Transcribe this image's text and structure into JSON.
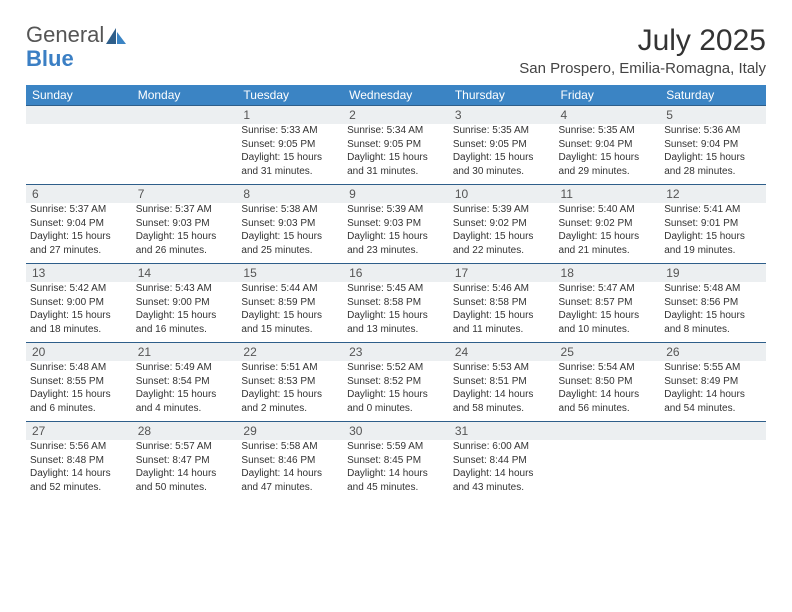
{
  "logo": {
    "part1": "General",
    "part2": "Blue"
  },
  "title": "July 2025",
  "location": "San Prospero, Emilia-Romagna, Italy",
  "colors": {
    "header_bg": "#3b84c4",
    "header_text": "#ffffff",
    "daynum_bg": "#eceff1",
    "daynum_border": "#2e5e8a",
    "text": "#333333",
    "logo_gray": "#555555",
    "logo_blue": "#3b7fc4"
  },
  "fonts": {
    "body_pt": 10,
    "dow_pt": 12,
    "daynum_pt": 12,
    "title_pt": 30,
    "location_pt": 15
  },
  "dow": [
    "Sunday",
    "Monday",
    "Tuesday",
    "Wednesday",
    "Thursday",
    "Friday",
    "Saturday"
  ],
  "weeks": [
    [
      null,
      null,
      {
        "n": "1",
        "sr": "Sunrise: 5:33 AM",
        "ss": "Sunset: 9:05 PM",
        "dl": "Daylight: 15 hours and 31 minutes."
      },
      {
        "n": "2",
        "sr": "Sunrise: 5:34 AM",
        "ss": "Sunset: 9:05 PM",
        "dl": "Daylight: 15 hours and 31 minutes."
      },
      {
        "n": "3",
        "sr": "Sunrise: 5:35 AM",
        "ss": "Sunset: 9:05 PM",
        "dl": "Daylight: 15 hours and 30 minutes."
      },
      {
        "n": "4",
        "sr": "Sunrise: 5:35 AM",
        "ss": "Sunset: 9:04 PM",
        "dl": "Daylight: 15 hours and 29 minutes."
      },
      {
        "n": "5",
        "sr": "Sunrise: 5:36 AM",
        "ss": "Sunset: 9:04 PM",
        "dl": "Daylight: 15 hours and 28 minutes."
      }
    ],
    [
      {
        "n": "6",
        "sr": "Sunrise: 5:37 AM",
        "ss": "Sunset: 9:04 PM",
        "dl": "Daylight: 15 hours and 27 minutes."
      },
      {
        "n": "7",
        "sr": "Sunrise: 5:37 AM",
        "ss": "Sunset: 9:03 PM",
        "dl": "Daylight: 15 hours and 26 minutes."
      },
      {
        "n": "8",
        "sr": "Sunrise: 5:38 AM",
        "ss": "Sunset: 9:03 PM",
        "dl": "Daylight: 15 hours and 25 minutes."
      },
      {
        "n": "9",
        "sr": "Sunrise: 5:39 AM",
        "ss": "Sunset: 9:03 PM",
        "dl": "Daylight: 15 hours and 23 minutes."
      },
      {
        "n": "10",
        "sr": "Sunrise: 5:39 AM",
        "ss": "Sunset: 9:02 PM",
        "dl": "Daylight: 15 hours and 22 minutes."
      },
      {
        "n": "11",
        "sr": "Sunrise: 5:40 AM",
        "ss": "Sunset: 9:02 PM",
        "dl": "Daylight: 15 hours and 21 minutes."
      },
      {
        "n": "12",
        "sr": "Sunrise: 5:41 AM",
        "ss": "Sunset: 9:01 PM",
        "dl": "Daylight: 15 hours and 19 minutes."
      }
    ],
    [
      {
        "n": "13",
        "sr": "Sunrise: 5:42 AM",
        "ss": "Sunset: 9:00 PM",
        "dl": "Daylight: 15 hours and 18 minutes."
      },
      {
        "n": "14",
        "sr": "Sunrise: 5:43 AM",
        "ss": "Sunset: 9:00 PM",
        "dl": "Daylight: 15 hours and 16 minutes."
      },
      {
        "n": "15",
        "sr": "Sunrise: 5:44 AM",
        "ss": "Sunset: 8:59 PM",
        "dl": "Daylight: 15 hours and 15 minutes."
      },
      {
        "n": "16",
        "sr": "Sunrise: 5:45 AM",
        "ss": "Sunset: 8:58 PM",
        "dl": "Daylight: 15 hours and 13 minutes."
      },
      {
        "n": "17",
        "sr": "Sunrise: 5:46 AM",
        "ss": "Sunset: 8:58 PM",
        "dl": "Daylight: 15 hours and 11 minutes."
      },
      {
        "n": "18",
        "sr": "Sunrise: 5:47 AM",
        "ss": "Sunset: 8:57 PM",
        "dl": "Daylight: 15 hours and 10 minutes."
      },
      {
        "n": "19",
        "sr": "Sunrise: 5:48 AM",
        "ss": "Sunset: 8:56 PM",
        "dl": "Daylight: 15 hours and 8 minutes."
      }
    ],
    [
      {
        "n": "20",
        "sr": "Sunrise: 5:48 AM",
        "ss": "Sunset: 8:55 PM",
        "dl": "Daylight: 15 hours and 6 minutes."
      },
      {
        "n": "21",
        "sr": "Sunrise: 5:49 AM",
        "ss": "Sunset: 8:54 PM",
        "dl": "Daylight: 15 hours and 4 minutes."
      },
      {
        "n": "22",
        "sr": "Sunrise: 5:51 AM",
        "ss": "Sunset: 8:53 PM",
        "dl": "Daylight: 15 hours and 2 minutes."
      },
      {
        "n": "23",
        "sr": "Sunrise: 5:52 AM",
        "ss": "Sunset: 8:52 PM",
        "dl": "Daylight: 15 hours and 0 minutes."
      },
      {
        "n": "24",
        "sr": "Sunrise: 5:53 AM",
        "ss": "Sunset: 8:51 PM",
        "dl": "Daylight: 14 hours and 58 minutes."
      },
      {
        "n": "25",
        "sr": "Sunrise: 5:54 AM",
        "ss": "Sunset: 8:50 PM",
        "dl": "Daylight: 14 hours and 56 minutes."
      },
      {
        "n": "26",
        "sr": "Sunrise: 5:55 AM",
        "ss": "Sunset: 8:49 PM",
        "dl": "Daylight: 14 hours and 54 minutes."
      }
    ],
    [
      {
        "n": "27",
        "sr": "Sunrise: 5:56 AM",
        "ss": "Sunset: 8:48 PM",
        "dl": "Daylight: 14 hours and 52 minutes."
      },
      {
        "n": "28",
        "sr": "Sunrise: 5:57 AM",
        "ss": "Sunset: 8:47 PM",
        "dl": "Daylight: 14 hours and 50 minutes."
      },
      {
        "n": "29",
        "sr": "Sunrise: 5:58 AM",
        "ss": "Sunset: 8:46 PM",
        "dl": "Daylight: 14 hours and 47 minutes."
      },
      {
        "n": "30",
        "sr": "Sunrise: 5:59 AM",
        "ss": "Sunset: 8:45 PM",
        "dl": "Daylight: 14 hours and 45 minutes."
      },
      {
        "n": "31",
        "sr": "Sunrise: 6:00 AM",
        "ss": "Sunset: 8:44 PM",
        "dl": "Daylight: 14 hours and 43 minutes."
      },
      null,
      null
    ]
  ]
}
